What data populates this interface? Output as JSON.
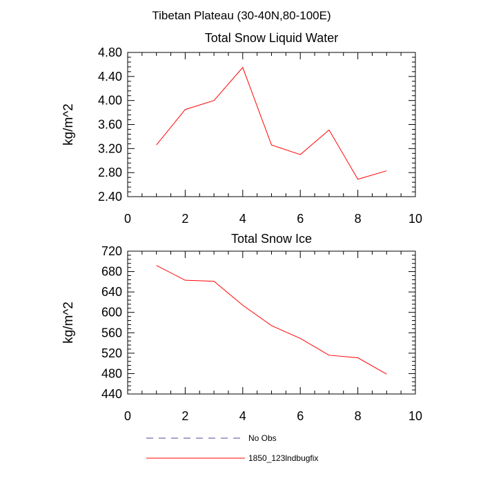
{
  "figure": {
    "title": "Tibetan Plateau (30-40N,80-100E)"
  },
  "chart_data": [
    {
      "type": "line",
      "title": "Total Snow Liquid Water",
      "xlabel": "",
      "ylabel": "kg/m^2",
      "xlim": [
        0,
        10
      ],
      "ylim": [
        2.4,
        4.8
      ],
      "xticks": [
        0,
        2,
        4,
        6,
        8,
        10
      ],
      "xtick_labels": [
        "0",
        "2",
        "4",
        "6",
        "8",
        "10"
      ],
      "yticks": [
        2.4,
        2.8,
        3.2,
        3.6,
        4.0,
        4.4,
        4.8
      ],
      "ytick_labels": [
        "2.40",
        "2.80",
        "3.20",
        "3.60",
        "4.00",
        "4.40",
        "4.80"
      ],
      "grid": false,
      "series": [
        {
          "name": "1850_123lndbugfix",
          "color": "#ff0000",
          "x": [
            1,
            2,
            3,
            4,
            5,
            6,
            7,
            8,
            9
          ],
          "y": [
            3.26,
            3.85,
            4.0,
            4.55,
            3.26,
            3.1,
            3.51,
            2.69,
            2.83
          ]
        }
      ]
    },
    {
      "type": "line",
      "title": "Total Snow Ice",
      "xlabel": "",
      "ylabel": "kg/m^2",
      "xlim": [
        0,
        10
      ],
      "ylim": [
        440,
        720
      ],
      "xticks": [
        0,
        2,
        4,
        6,
        8,
        10
      ],
      "xtick_labels": [
        "0",
        "2",
        "4",
        "6",
        "8",
        "10"
      ],
      "yticks": [
        440,
        480,
        520,
        560,
        600,
        640,
        680,
        720
      ],
      "ytick_labels": [
        "440",
        "480",
        "520",
        "560",
        "600",
        "640",
        "680",
        "720"
      ],
      "grid": false,
      "series": [
        {
          "name": "1850_123lndbugfix",
          "color": "#ff0000",
          "x": [
            1,
            2,
            3,
            4,
            5,
            6,
            7,
            8,
            9
          ],
          "y": [
            692,
            663,
            661,
            614,
            574,
            549,
            516,
            511,
            479
          ]
        }
      ]
    }
  ],
  "legend": {
    "placement": "bottom",
    "entries": [
      {
        "label": "No Obs",
        "color": "#4a4a9a",
        "style": "dashed"
      },
      {
        "label": "1850_123lndbugfix",
        "color": "#ff0000",
        "style": "solid"
      }
    ]
  }
}
